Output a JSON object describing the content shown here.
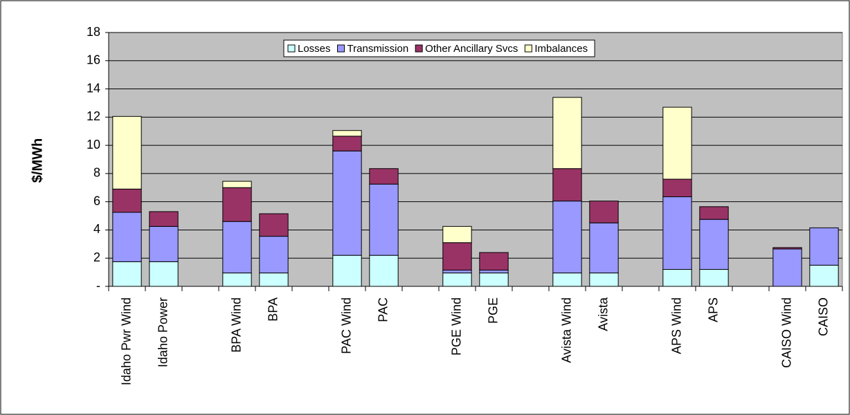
{
  "chart_data": {
    "type": "stacked_bar",
    "y_label": "$/MWh",
    "categories": [
      "Idaho Pwr Wind",
      "Idaho Power",
      null,
      "BPA Wind",
      "BPA",
      null,
      "PAC Wind",
      "PAC",
      null,
      "PGE Wind",
      "PGE",
      null,
      "Avista Wind",
      "Avista",
      null,
      "APS Wind",
      "APS",
      null,
      "CAISO Wind",
      "CAISO"
    ],
    "series": [
      {
        "name": "Losses",
        "color": "#ccffff",
        "values": [
          1.75,
          1.75,
          null,
          0.95,
          0.95,
          null,
          2.2,
          2.2,
          null,
          0.95,
          0.95,
          null,
          0.95,
          0.95,
          null,
          1.2,
          1.2,
          null,
          0,
          1.5
        ]
      },
      {
        "name": "Transmission",
        "color": "#9999ff",
        "values": [
          3.5,
          2.5,
          null,
          3.65,
          2.6,
          null,
          7.4,
          5.05,
          null,
          0.2,
          0.2,
          null,
          5.1,
          3.55,
          null,
          5.15,
          3.55,
          null,
          2.65,
          2.65
        ]
      },
      {
        "name": "Other Ancillary Svcs",
        "color": "#993366",
        "values": [
          1.65,
          1.05,
          null,
          2.4,
          1.6,
          null,
          1.05,
          1.1,
          null,
          1.95,
          1.25,
          null,
          2.3,
          1.55,
          null,
          1.25,
          0.9,
          null,
          0.1,
          0
        ]
      },
      {
        "name": "Imbalances",
        "color": "#ffffcc",
        "values": [
          5.15,
          0,
          null,
          0.45,
          0,
          null,
          0.4,
          0,
          null,
          1.15,
          0,
          null,
          5.05,
          0,
          null,
          5.1,
          0,
          null,
          0,
          0
        ]
      }
    ],
    "ylim": [
      0,
      18
    ],
    "yticks": [
      {
        "value": 0,
        "label": "-"
      },
      2,
      4,
      6,
      8,
      10,
      12,
      14,
      16,
      18
    ],
    "grid": true,
    "plot_background": "#c0c0c0",
    "legend": "top"
  }
}
